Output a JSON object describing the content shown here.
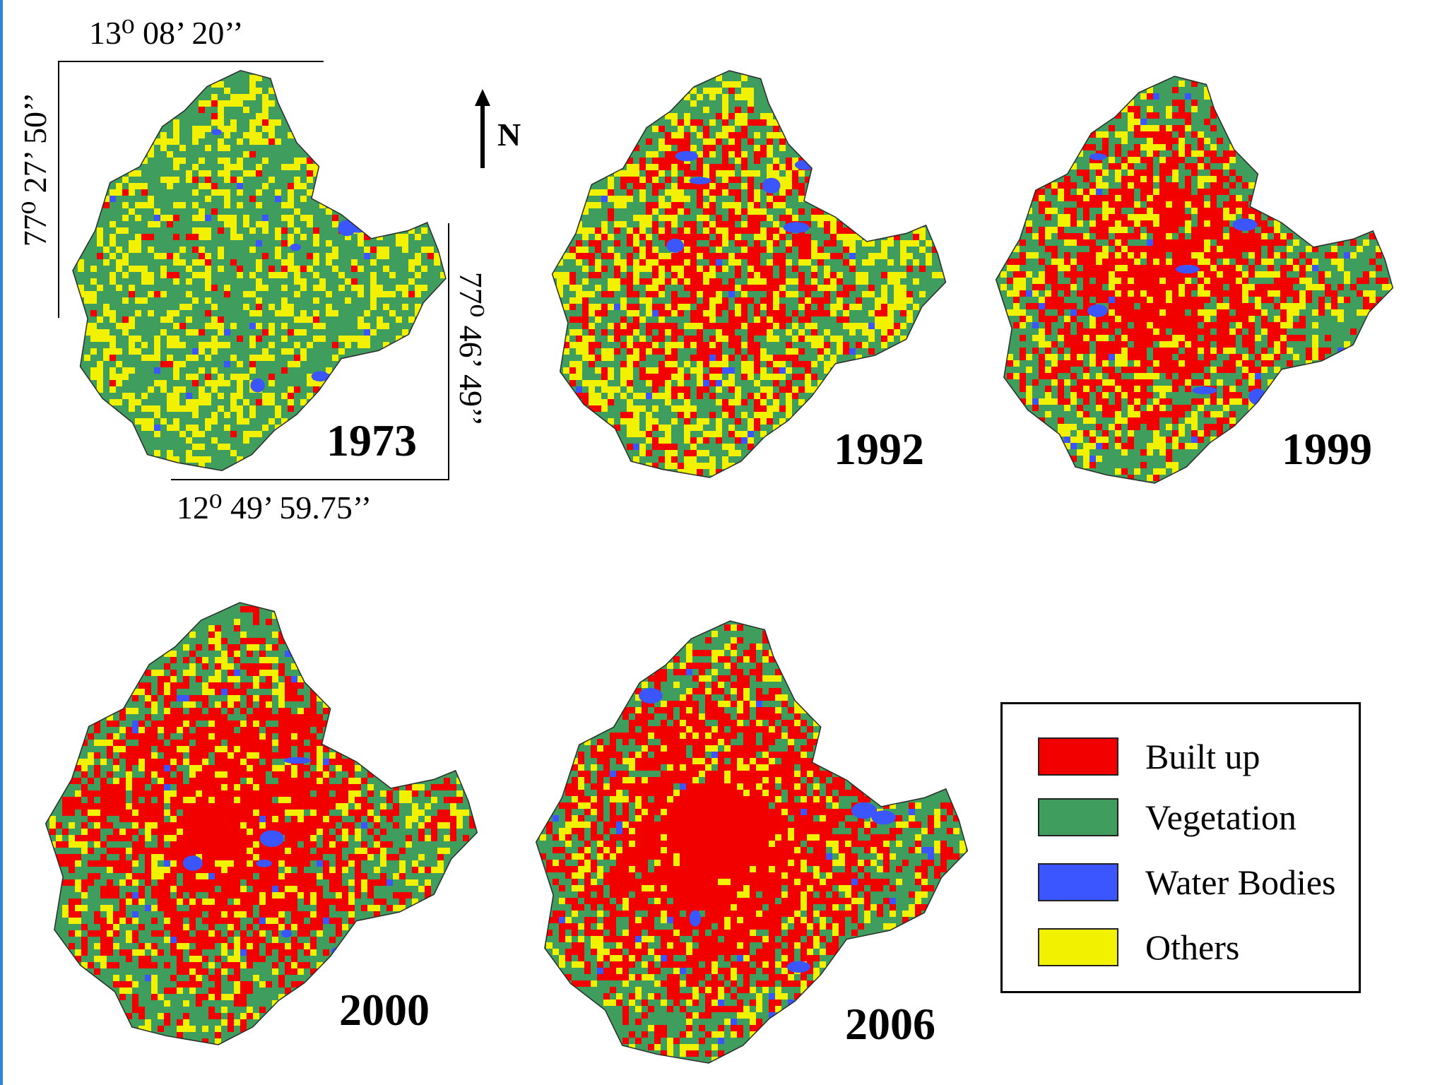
{
  "colors": {
    "built_up": "#f20000",
    "vegetation": "#3f9e5e",
    "water": "#3b55ff",
    "others": "#f2f200",
    "edge_strip": "#2e86d6"
  },
  "maps": [
    {
      "year": "1973",
      "mix": {
        "built_up": 0.05,
        "vegetation": 0.62,
        "others": 0.31,
        "water": 0.02
      }
    },
    {
      "year": "1992",
      "mix": {
        "built_up": 0.3,
        "vegetation": 0.36,
        "others": 0.32,
        "water": 0.02
      }
    },
    {
      "year": "1999",
      "mix": {
        "built_up": 0.46,
        "vegetation": 0.32,
        "others": 0.2,
        "water": 0.02
      }
    },
    {
      "year": "2000",
      "mix": {
        "built_up": 0.5,
        "vegetation": 0.32,
        "others": 0.16,
        "water": 0.02
      }
    },
    {
      "year": "2006",
      "mix": {
        "built_up": 0.56,
        "vegetation": 0.26,
        "others": 0.16,
        "water": 0.02
      }
    }
  ],
  "coordinates": {
    "top": "13⁰ 08’ 20’’",
    "left": "77⁰ 27’ 50’’",
    "right": "77⁰ 46’ 49’’",
    "bottom": "12⁰ 49’ 59.75’’"
  },
  "north_label": "N",
  "legend": [
    {
      "label": "Built up",
      "color_key": "built_up"
    },
    {
      "label": "Vegetation",
      "color_key": "vegetation"
    },
    {
      "label": "Water Bodies",
      "color_key": "water"
    },
    {
      "label": "Others",
      "color_key": "others"
    }
  ]
}
